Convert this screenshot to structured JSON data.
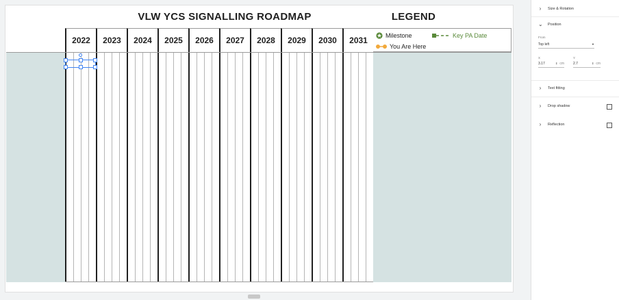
{
  "slide": {
    "title": "VLW YCS SIGNALLING ROADMAP",
    "legend_title": "LEGEND",
    "years": [
      "2022",
      "2023",
      "2024",
      "2025",
      "2026",
      "2027",
      "2028",
      "2029",
      "2030",
      "2031"
    ],
    "legend": {
      "milestone": "Milestone",
      "you_are_here": "You Are Here",
      "key_pa_date": "Key PA Date"
    },
    "colors": {
      "band": "#d5e2e2",
      "milestone_green": "#5a8a3a",
      "here_orange": "#f2a93b",
      "selection_blue": "#4285f4"
    }
  },
  "panel": {
    "size_rotation": "Size & Rotation",
    "position": "Position",
    "from_label": "From",
    "from_value": "Top left",
    "x_label": "X",
    "x_value": "3.17",
    "x_unit": "cm",
    "y_label": "Y",
    "y_value": "2.7",
    "y_unit": "cm",
    "text_fitting": "Text fitting",
    "drop_shadow": "Drop shadow",
    "reflection": "Reflection"
  }
}
